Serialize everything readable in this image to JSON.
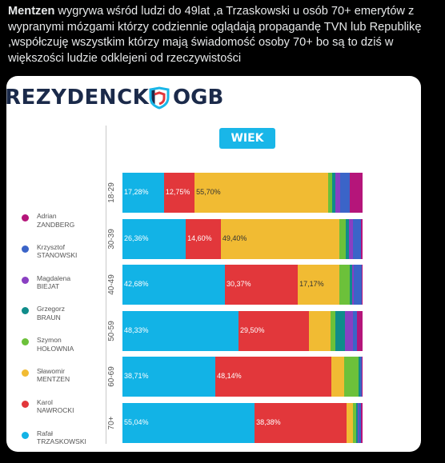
{
  "tweet": {
    "bold": "Mentzen",
    "text": " wygrywa wśród ludzi do 49lat ,a Trzaskowski u osób 70+ emerytów z wypranymi mózgami którzy codziennie oglądają propagandę TVN lub Republikę ,współczuję wszystkim którzy mają świadomość osoby 70+ bo są to dziś w większości ludzie odklejeni od rzeczywistości"
  },
  "media": {
    "header": "REZYDENCKI",
    "logo_text": "OGB",
    "badge": "WIEK",
    "legend": [
      {
        "label": "Adrian\nZANDBERG",
        "color": "#b5157a"
      },
      {
        "label": "Krzysztof\nSTANOWSKI",
        "color": "#3b64c8"
      },
      {
        "label": "Magdalena\nBIEJAT",
        "color": "#8a3fc2"
      },
      {
        "label": "Grzegorz\nBRAUN",
        "color": "#0f8c8a"
      },
      {
        "label": "Szymon\nHOŁOWNIA",
        "color": "#6cc13a"
      },
      {
        "label": "Sławomir\nMENTZEN",
        "color": "#f1bb33"
      },
      {
        "label": "Karol\nNAWROCKI",
        "color": "#e2373b"
      },
      {
        "label": "Rafał\nTRZASKOWSKI",
        "color": "#12b3e6"
      }
    ]
  },
  "chart_data": {
    "type": "bar",
    "orientation": "horizontal-stacked",
    "categories": [
      "18-29",
      "30-39",
      "40-49",
      "50-59",
      "60-69",
      "70+"
    ],
    "series": [
      {
        "name": "Rafał TRZASKOWSKI",
        "color": "#12b3e6",
        "values": [
          17.28,
          26.36,
          42.68,
          48.33,
          38.71,
          55.04
        ],
        "labels": [
          "17,28%",
          "26,36%",
          "42,68%",
          "48,33%",
          "38,71%",
          "55,04%"
        ]
      },
      {
        "name": "Karol NAWROCKI",
        "color": "#e2373b",
        "values": [
          12.75,
          14.6,
          30.37,
          29.5,
          48.14,
          38.38
        ],
        "labels": [
          "12,75%",
          "14,60%",
          "30,37%",
          "29,50%",
          "48,14%",
          "38,38%"
        ]
      },
      {
        "name": "Sławomir MENTZEN",
        "color": "#f1bb33",
        "values": [
          55.7,
          49.4,
          17.17,
          9.0,
          5.5,
          2.5
        ],
        "labels": [
          "55,70%",
          "49,40%",
          "17,17%",
          "",
          "",
          ""
        ]
      },
      {
        "name": "Szymon HOŁOWNIA",
        "color": "#6cc13a",
        "values": [
          1.5,
          2.5,
          4.5,
          2.0,
          6.0,
          1.5
        ],
        "labels": [
          "",
          "",
          "",
          "",
          "",
          ""
        ]
      },
      {
        "name": "Grzegorz BRAUN",
        "color": "#0f8c8a",
        "values": [
          1.5,
          1.5,
          1.0,
          3.8,
          0.5,
          0.5
        ],
        "labels": [
          "",
          "",
          "",
          "",
          "",
          ""
        ]
      },
      {
        "name": "Magdalena BIEJAT",
        "color": "#8a3fc2",
        "values": [
          2.0,
          1.5,
          0.5,
          3.5,
          0.3,
          0.5
        ],
        "labels": [
          "",
          "",
          "",
          "",
          "",
          ""
        ]
      },
      {
        "name": "Krzysztof STANOWSKI",
        "color": "#3b64c8",
        "values": [
          4.0,
          3.4,
          3.5,
          1.5,
          0.6,
          1.0
        ],
        "labels": [
          "",
          "",
          "",
          "",
          "",
          ""
        ]
      },
      {
        "name": "Adrian ZANDBERG",
        "color": "#b5157a",
        "values": [
          5.27,
          0.74,
          0.28,
          2.37,
          0.25,
          0.58
        ],
        "labels": [
          "",
          "",
          "",
          "",
          "",
          ""
        ]
      }
    ]
  }
}
